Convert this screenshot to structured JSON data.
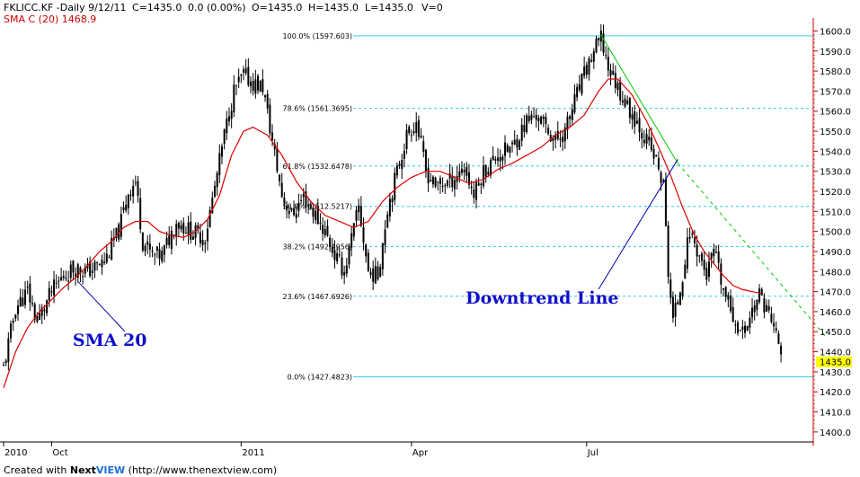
{
  "header": {
    "symbol": "FKLICC.KF -Daily  9/12/11",
    "close": "C=1435.0",
    "change": "0.0 (0.00%)",
    "open": "O=1435.0",
    "high": "H=1435.0",
    "low": "L=1435.0",
    "volume": "V=0",
    "sma_label": "SMA C (20) 1468.9"
  },
  "footer": {
    "prefix": "Created with ",
    "brand_next": "Next",
    "brand_view": "VIEW",
    "url": " (http://www.thenextview.com)"
  },
  "colors": {
    "candles": "#000000",
    "sma": "#dd0000",
    "fib": "#33ccee",
    "downtrend": "#00cc00",
    "pointer": "#0000aa",
    "axis": "#cc0000",
    "last_price_bg": "#ffff00"
  },
  "chart_data": {
    "type": "candlestick",
    "y_axis": {
      "min": 1395,
      "max": 1602,
      "ticks": [
        "1400.0",
        "1410.0",
        "1420.0",
        "1430.0",
        "1440.0",
        "1450.0",
        "1460.0",
        "1470.0",
        "1480.0",
        "1490.0",
        "1500.0",
        "1510.0",
        "1520.0",
        "1530.0",
        "1540.0",
        "1550.0",
        "1560.0",
        "1570.0",
        "1580.0",
        "1590.0",
        "1600.0"
      ],
      "last_price": "1435.0",
      "last_price_value": 1435.0
    },
    "x_axis": {
      "labels": [
        {
          "text": "2010",
          "bar": 0
        },
        {
          "text": "Oct",
          "bar": 20
        },
        {
          "text": "2011",
          "bar": 99
        },
        {
          "text": "Apr",
          "bar": 170
        },
        {
          "text": "Jul",
          "bar": 243
        }
      ],
      "bar_count": 300
    },
    "fibonacci": [
      {
        "label": "100.0% (1597.603)",
        "value": 1597.603,
        "solid": true
      },
      {
        "label": "78.6% (1561.3695)",
        "value": 1561.3695,
        "solid": false
      },
      {
        "label": "61.8% (1532.6478)",
        "value": 1532.6478,
        "solid": false
      },
      {
        "label": "50.0% (1512.5217)",
        "value": 1512.5217,
        "solid": false
      },
      {
        "label": "38.2% (1492.4956)",
        "value": 1492.4956,
        "solid": false
      },
      {
        "label": "23.6% (1467.6926)",
        "value": 1467.6926,
        "solid": false
      },
      {
        "label": "0.0% (1427.4823)",
        "value": 1427.4823,
        "solid": true
      }
    ],
    "close_anchors": [
      [
        0,
        1432
      ],
      [
        5,
        1462
      ],
      [
        10,
        1470
      ],
      [
        14,
        1455
      ],
      [
        20,
        1470
      ],
      [
        25,
        1478
      ],
      [
        30,
        1482
      ],
      [
        35,
        1480
      ],
      [
        42,
        1485
      ],
      [
        48,
        1500
      ],
      [
        52,
        1520
      ],
      [
        55,
        1525
      ],
      [
        58,
        1495
      ],
      [
        62,
        1488
      ],
      [
        66,
        1488
      ],
      [
        72,
        1505
      ],
      [
        78,
        1500
      ],
      [
        84,
        1497
      ],
      [
        88,
        1522
      ],
      [
        92,
        1548
      ],
      [
        96,
        1570
      ],
      [
        100,
        1578
      ],
      [
        104,
        1574
      ],
      [
        108,
        1572
      ],
      [
        112,
        1545
      ],
      [
        116,
        1518
      ],
      [
        120,
        1508
      ],
      [
        125,
        1517
      ],
      [
        130,
        1508
      ],
      [
        134,
        1500
      ],
      [
        138,
        1488
      ],
      [
        142,
        1480
      ],
      [
        148,
        1512
      ],
      [
        152,
        1480
      ],
      [
        156,
        1478
      ],
      [
        160,
        1512
      ],
      [
        164,
        1530
      ],
      [
        168,
        1548
      ],
      [
        172,
        1555
      ],
      [
        176,
        1530
      ],
      [
        180,
        1523
      ],
      [
        186,
        1525
      ],
      [
        192,
        1532
      ],
      [
        196,
        1518
      ],
      [
        200,
        1530
      ],
      [
        206,
        1538
      ],
      [
        212,
        1542
      ],
      [
        218,
        1555
      ],
      [
        222,
        1558
      ],
      [
        226,
        1552
      ],
      [
        230,
        1545
      ],
      [
        234,
        1550
      ],
      [
        238,
        1565
      ],
      [
        242,
        1578
      ],
      [
        246,
        1590
      ],
      [
        249,
        1596
      ],
      [
        252,
        1582
      ],
      [
        256,
        1572
      ],
      [
        260,
        1562
      ],
      [
        264,
        1555
      ],
      [
        268,
        1545
      ],
      [
        272,
        1535
      ],
      [
        275,
        1522
      ],
      [
        277,
        1480
      ],
      [
        279,
        1455
      ],
      [
        282,
        1472
      ],
      [
        286,
        1500
      ],
      [
        290,
        1488
      ],
      [
        293,
        1478
      ],
      [
        296,
        1490
      ],
      [
        300,
        1470
      ],
      [
        304,
        1458
      ],
      [
        308,
        1448
      ],
      [
        311,
        1458
      ],
      [
        315,
        1468
      ],
      [
        318,
        1462
      ],
      [
        321,
        1452
      ],
      [
        324,
        1440
      ]
    ],
    "sma_anchors": [
      [
        0,
        1422
      ],
      [
        5,
        1440
      ],
      [
        10,
        1452
      ],
      [
        15,
        1460
      ],
      [
        20,
        1466
      ],
      [
        25,
        1472
      ],
      [
        30,
        1477
      ],
      [
        35,
        1483
      ],
      [
        40,
        1490
      ],
      [
        45,
        1495
      ],
      [
        50,
        1502
      ],
      [
        55,
        1505
      ],
      [
        60,
        1505
      ],
      [
        65,
        1500
      ],
      [
        70,
        1498
      ],
      [
        75,
        1497
      ],
      [
        80,
        1500
      ],
      [
        85,
        1506
      ],
      [
        90,
        1518
      ],
      [
        95,
        1538
      ],
      [
        100,
        1550
      ],
      [
        104,
        1552
      ],
      [
        110,
        1548
      ],
      [
        116,
        1538
      ],
      [
        122,
        1525
      ],
      [
        128,
        1515
      ],
      [
        134,
        1508
      ],
      [
        140,
        1505
      ],
      [
        146,
        1502
      ],
      [
        152,
        1505
      ],
      [
        158,
        1515
      ],
      [
        164,
        1522
      ],
      [
        170,
        1527
      ],
      [
        176,
        1530
      ],
      [
        182,
        1530
      ],
      [
        188,
        1527
      ],
      [
        194,
        1524
      ],
      [
        200,
        1526
      ],
      [
        206,
        1531
      ],
      [
        212,
        1534
      ],
      [
        218,
        1538
      ],
      [
        224,
        1542
      ],
      [
        230,
        1548
      ],
      [
        236,
        1552
      ],
      [
        242,
        1558
      ],
      [
        248,
        1570
      ],
      [
        252,
        1576
      ],
      [
        256,
        1576
      ],
      [
        262,
        1568
      ],
      [
        268,
        1555
      ],
      [
        273,
        1542
      ],
      [
        278,
        1528
      ],
      [
        283,
        1512
      ],
      [
        288,
        1498
      ],
      [
        292,
        1490
      ],
      [
        296,
        1484
      ],
      [
        300,
        1478
      ],
      [
        304,
        1473
      ],
      [
        308,
        1471
      ],
      [
        312,
        1470
      ],
      [
        316,
        1469
      ]
    ],
    "downtrend_line": {
      "from": [
        249,
        1598
      ],
      "to": [
        281,
        1534
      ],
      "extend_to_bar": 343,
      "extend_to_value": 1447
    },
    "annotations": [
      {
        "text": "SMA 20",
        "pointer_from_bar": 31,
        "pointer_from_value": 1475,
        "label_bar": 58,
        "label_value": 1443
      },
      {
        "text": "Downtrend Line",
        "pointer_from_bar": 281,
        "pointer_from_value": 1536,
        "label_bar": 233,
        "label_value": 1464
      }
    ]
  }
}
